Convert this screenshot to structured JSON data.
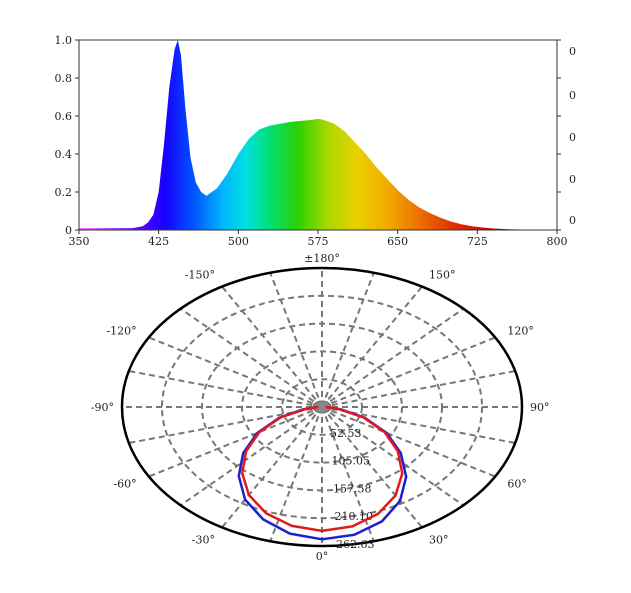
{
  "colors": {
    "polar_series_a": "#1f1fd0",
    "polar_series_b": "#e01b1b",
    "polar_grid": "#777777",
    "polar_outer": "#000000"
  },
  "chart_data": [
    {
      "type": "area",
      "title": "",
      "xlabel": "",
      "ylabel": "",
      "xlim": [
        350,
        800
      ],
      "ylim": [
        0,
        1.0
      ],
      "grid": false,
      "x_ticks": [
        "350",
        "425",
        "500",
        "575",
        "650",
        "725",
        "800"
      ],
      "y_ticks": [
        "0",
        "0.2",
        "0.4",
        "0.6",
        "0.8",
        "1.0"
      ],
      "right_axis_ticks": [
        "0",
        "0",
        "0",
        "0",
        "0",
        "0"
      ],
      "fill": "visible spectrum gradient",
      "x": [
        350,
        380,
        400,
        410,
        415,
        420,
        425,
        430,
        435,
        440,
        443,
        446,
        450,
        455,
        460,
        465,
        470,
        480,
        490,
        500,
        510,
        520,
        530,
        540,
        550,
        560,
        570,
        575,
        580,
        590,
        600,
        610,
        620,
        630,
        640,
        650,
        660,
        670,
        680,
        690,
        700,
        710,
        720,
        730,
        740,
        750,
        760,
        780,
        800
      ],
      "values": [
        0.01,
        0.01,
        0.01,
        0.02,
        0.04,
        0.08,
        0.2,
        0.45,
        0.75,
        0.95,
        1.0,
        0.92,
        0.65,
        0.38,
        0.25,
        0.2,
        0.18,
        0.22,
        0.3,
        0.4,
        0.48,
        0.53,
        0.55,
        0.56,
        0.57,
        0.575,
        0.58,
        0.585,
        0.58,
        0.56,
        0.52,
        0.46,
        0.4,
        0.33,
        0.27,
        0.21,
        0.16,
        0.12,
        0.09,
        0.065,
        0.045,
        0.03,
        0.02,
        0.013,
        0.008,
        0.005,
        0.003,
        0.001,
        0.0
      ]
    },
    {
      "type": "polar",
      "title": "",
      "grid": true,
      "angle_labels": [
        "±180°",
        "150°",
        "120°",
        "90°",
        "60°",
        "30°",
        "0°",
        "-30°",
        "-60°",
        "-90°",
        "-120°",
        "-150°"
      ],
      "radial_labels": [
        "52.53",
        "105.05",
        "157.58",
        "210.10",
        "262.63"
      ],
      "rmax": 262.63,
      "series": [
        {
          "angles": [
            -90,
            -80,
            -70,
            -60,
            -50,
            -40,
            -30,
            -20,
            -10,
            0,
            10,
            20,
            30,
            40,
            50,
            60,
            70,
            80,
            90
          ],
          "values": [
            5,
            25,
            60,
            98,
            135,
            170,
            202,
            226,
            243,
            250,
            245,
            230,
            205,
            172,
            135,
            98,
            60,
            25,
            5
          ]
        },
        {
          "angles": [
            -90,
            -80,
            -70,
            -60,
            -50,
            -40,
            -30,
            -20,
            -10,
            0,
            10,
            20,
            30,
            40,
            50,
            60,
            70,
            80,
            90
          ],
          "values": [
            5,
            22,
            58,
            95,
            130,
            163,
            192,
            214,
            228,
            234,
            229,
            215,
            193,
            164,
            130,
            95,
            58,
            22,
            5
          ]
        }
      ]
    }
  ]
}
